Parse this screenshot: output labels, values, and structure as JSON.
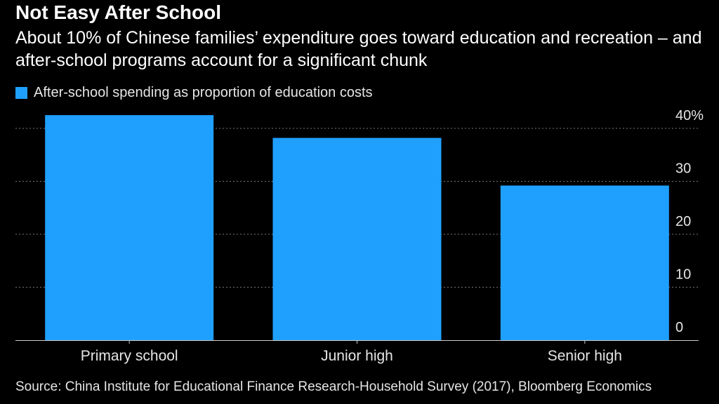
{
  "title": "Not Easy After School",
  "subtitle": "About 10% of Chinese families’ expenditure goes toward education and recreation – and after-school programs account for a significant chunk",
  "source": "Source: China Institute for Educational Finance Research-Household Survey (2017), Bloomberg Economics",
  "colors": {
    "background": "#000000",
    "bar": "#1fa0ff",
    "grid": "#777777"
  },
  "chart_data": {
    "type": "bar",
    "title": "Not Easy After School",
    "categories": [
      "Primary school",
      "Junior high",
      "Senior high"
    ],
    "series": [
      {
        "name": "After-school spending as proportion of education costs",
        "values": [
          42.5,
          38.2,
          29.2
        ]
      }
    ],
    "xlabel": "",
    "ylabel": "",
    "ylim": [
      0,
      40
    ],
    "yticks": [
      0,
      10,
      20,
      30,
      40
    ],
    "ytick_labels": [
      "0",
      "10",
      "20",
      "30",
      "40%"
    ],
    "grid": true,
    "legend": "top-left",
    "yaxis_position": "right"
  }
}
